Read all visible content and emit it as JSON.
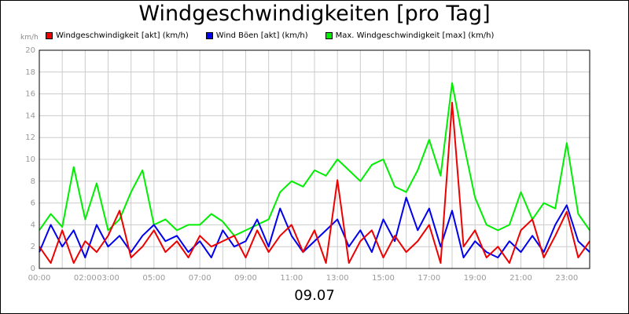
{
  "title": "Windgeschwindigkeiten [pro Tag]",
  "date_label": "09.07",
  "unit": "km/h",
  "legend": [
    {
      "label": "Windgeschwindigkeit [akt] (km/h)",
      "color": "#ee0000"
    },
    {
      "label": "Wind Böen [akt] (km/h)",
      "color": "#0000ee"
    },
    {
      "label": "Max. Windgeschwindigkeit [max] (km/h)",
      "color": "#00ee00"
    }
  ],
  "chart_data": {
    "type": "line",
    "title": "Windgeschwindigkeiten [pro Tag]",
    "ylabel": "km/h",
    "xlabel": "09.07",
    "ylim": [
      0,
      20
    ],
    "y_ticks": [
      0,
      2,
      4,
      6,
      8,
      10,
      12,
      14,
      16,
      18,
      20
    ],
    "xlim": [
      0,
      24
    ],
    "x_tick_labels": [
      {
        "hour": 0,
        "label": "00:00"
      },
      {
        "hour": 2,
        "label": "02:00"
      },
      {
        "hour": 3,
        "label": "03:00"
      },
      {
        "hour": 5,
        "label": "05:00"
      },
      {
        "hour": 7,
        "label": "07:00"
      },
      {
        "hour": 9,
        "label": "09:00"
      },
      {
        "hour": 11,
        "label": "11:00"
      },
      {
        "hour": 13,
        "label": "13:00"
      },
      {
        "hour": 15,
        "label": "15:00"
      },
      {
        "hour": 17,
        "label": "17:00"
      },
      {
        "hour": 19,
        "label": "19:00"
      },
      {
        "hour": 21,
        "label": "21:00"
      },
      {
        "hour": 23,
        "label": "23:00"
      }
    ],
    "grid": true,
    "x_hours": [
      0,
      0.5,
      1,
      1.5,
      2,
      2.5,
      3,
      3.5,
      4,
      4.5,
      5,
      5.5,
      6,
      6.5,
      7,
      7.5,
      8,
      8.5,
      9,
      9.5,
      10,
      10.5,
      11,
      11.5,
      12,
      12.5,
      13,
      13.5,
      14,
      14.5,
      15,
      15.5,
      16,
      16.5,
      17,
      17.5,
      18,
      18.5,
      19,
      19.5,
      20,
      20.5,
      21,
      21.5,
      22,
      22.5,
      23,
      23.5,
      24
    ],
    "series": [
      {
        "name": "Windgeschwindigkeit [akt] (km/h)",
        "color": "#ee0000",
        "values": [
          2.0,
          0.5,
          3.5,
          0.5,
          2.5,
          1.5,
          3.0,
          5.3,
          1.0,
          2.0,
          3.5,
          1.5,
          2.5,
          1.0,
          3.0,
          2.0,
          2.5,
          3.0,
          1.0,
          3.5,
          1.5,
          3.0,
          4.0,
          1.5,
          3.5,
          0.5,
          8.1,
          0.5,
          2.5,
          3.5,
          1.0,
          3.0,
          1.5,
          2.5,
          4.0,
          0.5,
          15.2,
          2.0,
          3.5,
          1.0,
          2.0,
          0.5,
          3.5,
          4.5,
          1.0,
          3.0,
          5.2,
          1.0,
          2.5
        ]
      },
      {
        "name": "Wind Böen [akt] (km/h)",
        "color": "#0000ee",
        "values": [
          1.5,
          4.0,
          2.0,
          3.5,
          1.0,
          4.0,
          2.0,
          3.0,
          1.5,
          3.0,
          4.0,
          2.5,
          3.0,
          1.5,
          2.5,
          1.0,
          3.5,
          2.0,
          2.5,
          4.5,
          2.0,
          5.5,
          3.0,
          1.5,
          2.5,
          3.5,
          4.5,
          2.0,
          3.5,
          1.5,
          4.5,
          2.5,
          6.5,
          3.5,
          5.5,
          2.0,
          5.3,
          1.0,
          2.5,
          1.5,
          1.0,
          2.5,
          1.5,
          3.0,
          1.5,
          4.0,
          5.8,
          2.5,
          1.5
        ]
      },
      {
        "name": "Max. Windgeschwindigkeit [max] (km/h)",
        "color": "#00ee00",
        "values": [
          3.5,
          5.0,
          3.8,
          9.3,
          4.5,
          7.8,
          3.5,
          4.5,
          7.0,
          9.0,
          4.0,
          4.5,
          3.5,
          4.0,
          4.0,
          5.0,
          4.3,
          3.0,
          3.5,
          4.0,
          4.5,
          7.0,
          8.0,
          7.5,
          9.0,
          8.5,
          10.0,
          9.0,
          8.0,
          9.5,
          10.0,
          7.5,
          7.0,
          9.0,
          11.8,
          8.5,
          17.0,
          11.5,
          6.5,
          4.0,
          3.5,
          4.0,
          7.0,
          4.5,
          6.0,
          5.5,
          11.5,
          5.0,
          3.5
        ]
      }
    ]
  }
}
